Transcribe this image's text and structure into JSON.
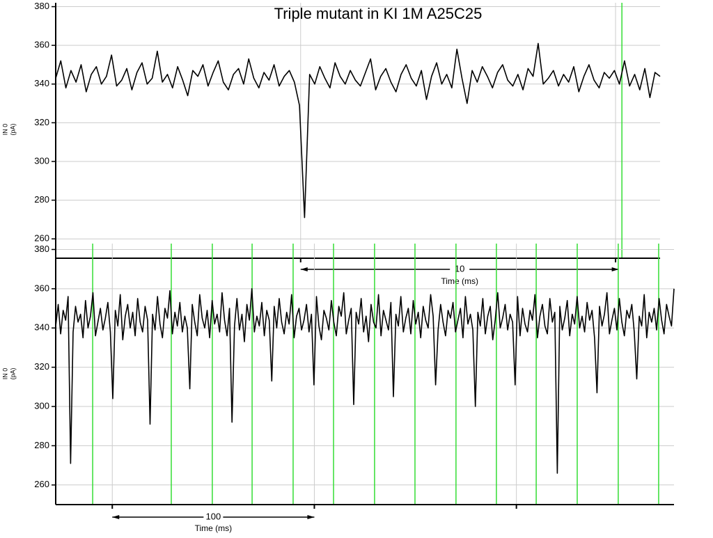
{
  "chart_data": [
    {
      "type": "line",
      "title": "Triple mutant in KI 1M A25C25",
      "ylabel": [
        "IN 0",
        "(pA)"
      ],
      "xlabel": "Time (ms)",
      "xlim": [
        0,
        19
      ],
      "ylim": [
        250,
        382
      ],
      "yticks": [
        260,
        280,
        300,
        320,
        340,
        360,
        380
      ],
      "xticks": [
        7.7,
        17.6
      ],
      "scale_bar": 10,
      "grid": true,
      "color": "#000000",
      "marker_color": "#33dd33",
      "markers": [
        17.8
      ],
      "values": [
        343,
        352,
        338,
        347,
        341,
        350,
        336,
        345,
        349,
        340,
        344,
        355,
        339,
        342,
        348,
        337,
        346,
        351,
        340,
        343,
        357,
        341,
        345,
        338,
        349,
        342,
        334,
        347,
        344,
        350,
        339,
        346,
        352,
        341,
        337,
        345,
        348,
        340,
        353,
        343,
        338,
        346,
        342,
        350,
        339,
        344,
        347,
        341,
        329,
        271,
        345,
        340,
        349,
        343,
        338,
        351,
        344,
        340,
        347,
        342,
        339,
        346,
        353,
        337,
        344,
        348,
        341,
        336,
        345,
        350,
        343,
        339,
        347,
        332,
        344,
        351,
        340,
        345,
        338,
        358,
        343,
        330,
        347,
        341,
        349,
        344,
        338,
        346,
        350,
        342,
        339,
        345,
        337,
        348,
        344,
        361,
        340,
        343,
        347,
        339,
        345,
        341,
        349,
        336,
        344,
        350,
        342,
        338,
        346,
        343,
        347,
        340,
        352,
        339,
        345,
        337,
        348,
        333,
        346,
        344
      ]
    },
    {
      "type": "line",
      "ylabel": [
        "IN 0",
        "(pA)"
      ],
      "xlabel": "Time (ms)",
      "xlim": [
        0,
        306
      ],
      "ylim": [
        250,
        383
      ],
      "yticks": [
        260,
        280,
        300,
        320,
        340,
        360,
        380
      ],
      "xticks": [
        28,
        128,
        228
      ],
      "scale_bar": 100,
      "grid": true,
      "color": "#000000",
      "marker_color": "#33dd33",
      "markers": [
        18.3,
        57.2,
        77.5,
        97.2,
        117.5,
        137.5,
        157.8,
        177.8,
        198.1,
        218.1,
        237.8,
        258.1,
        278.4,
        298.4
      ],
      "values": [
        341,
        352,
        337,
        349,
        344,
        356,
        271,
        338,
        351,
        343,
        347,
        335,
        354,
        340,
        346,
        358,
        336,
        343,
        350,
        339,
        345,
        353,
        338,
        304,
        349,
        341,
        357,
        334,
        346,
        352,
        340,
        348,
        336,
        355,
        343,
        338,
        351,
        344,
        291,
        347,
        339,
        356,
        342,
        335,
        350,
        345,
        359,
        337,
        348,
        341,
        353,
        338,
        346,
        340,
        309,
        352,
        343,
        336,
        357,
        345,
        340,
        349,
        335,
        354,
        342,
        347,
        338,
        358,
        344,
        336,
        350,
        292,
        341,
        355,
        339,
        347,
        333,
        352,
        344,
        360,
        338,
        346,
        341,
        353,
        336,
        349,
        344,
        313,
        351,
        340,
        355,
        343,
        337,
        348,
        342,
        357,
        335,
        346,
        350,
        339,
        344,
        352,
        338,
        347,
        311,
        356,
        341,
        334,
        349,
        345,
        339,
        354,
        343,
        336,
        351,
        346,
        358,
        337,
        344,
        350,
        301,
        348,
        342,
        355,
        338,
        346,
        333,
        352,
        343,
        340,
        357,
        336,
        349,
        344,
        339,
        353,
        305,
        347,
        341,
        356,
        338,
        345,
        350,
        337,
        354,
        342,
        348,
        335,
        351,
        344,
        340,
        357,
        346,
        311,
        339,
        352,
        343,
        336,
        349,
        345,
        353,
        338,
        344,
        350,
        335,
        356,
        342,
        347,
        339,
        300,
        348,
        341,
        355,
        337,
        346,
        351,
        334,
        344,
        358,
        340,
        345,
        352,
        339,
        347,
        343,
        311,
        356,
        336,
        350,
        342,
        338,
        349,
        344,
        357,
        335,
        346,
        352,
        341,
        337,
        355,
        343,
        348,
        266,
        351,
        339,
        345,
        354,
        336,
        347,
        342,
        356,
        340,
        346,
        338,
        353,
        344,
        349,
        335,
        307,
        351,
        341,
        347,
        358,
        337,
        344,
        350,
        339,
        355,
        343,
        336,
        349,
        345,
        352,
        338,
        314,
        346,
        341,
        357,
        335,
        348,
        343,
        350,
        339,
        355,
        344,
        337,
        352,
        346,
        341,
        360
      ]
    }
  ]
}
